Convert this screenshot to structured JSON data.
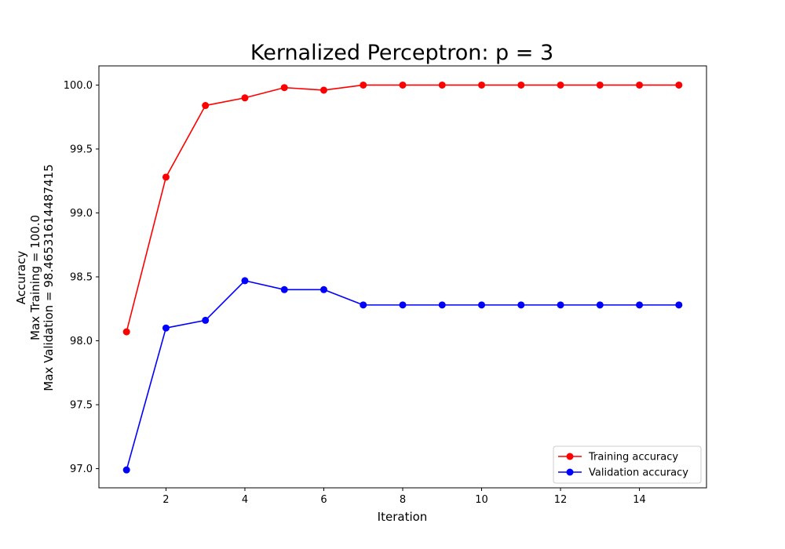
{
  "chart_data": {
    "type": "line",
    "title": "Kernalized Perceptron: p = 3",
    "xlabel": "Iteration",
    "ylabel_lines": [
      "Accuracy",
      "Max Training = 100.0",
      "Max Validation = 98.46531614487415"
    ],
    "xlim": [
      0.3,
      15.7
    ],
    "ylim": [
      96.85,
      100.15
    ],
    "xticks": [
      2,
      4,
      6,
      8,
      10,
      12,
      14
    ],
    "yticks": [
      97.0,
      97.5,
      98.0,
      98.5,
      99.0,
      99.5,
      100.0
    ],
    "ytick_labels": [
      "97.0",
      "97.5",
      "98.0",
      "98.5",
      "99.0",
      "99.5",
      "100.0"
    ],
    "grid": false,
    "legend_position": "lower-right",
    "x": [
      1,
      2,
      3,
      4,
      5,
      6,
      7,
      8,
      9,
      10,
      11,
      12,
      13,
      14,
      15
    ],
    "series": [
      {
        "name": "Training accuracy",
        "color": "#ff0000",
        "marker": "circle",
        "values": [
          98.07,
          99.28,
          99.84,
          99.9,
          99.98,
          99.96,
          100.0,
          100.0,
          100.0,
          100.0,
          100.0,
          100.0,
          100.0,
          100.0,
          100.0
        ]
      },
      {
        "name": "Validation accuracy",
        "color": "#0000ff",
        "marker": "circle",
        "values": [
          96.99,
          98.1,
          98.16,
          98.47,
          98.4,
          98.4,
          98.28,
          98.28,
          98.28,
          98.28,
          98.28,
          98.28,
          98.28,
          98.28,
          98.28
        ]
      }
    ]
  }
}
